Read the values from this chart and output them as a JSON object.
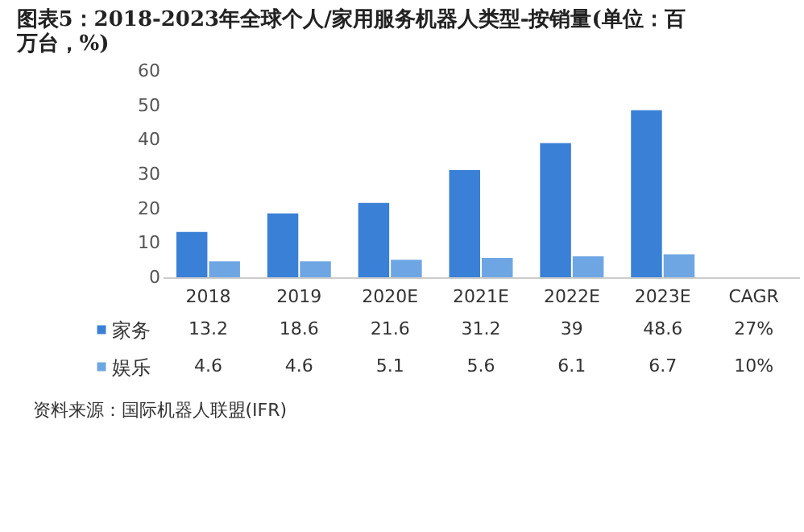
{
  "chart_data": {
    "type": "bar",
    "title": "图表5：2018-2023年全球个人/家用服务机器人类型-按销量(单位：百万台，%)",
    "categories": [
      "2018",
      "2019",
      "2020E",
      "2021E",
      "2022E",
      "2023E",
      "CAGR"
    ],
    "series": [
      {
        "name": "家务",
        "color": "#3a80d6",
        "values": [
          13.2,
          18.6,
          21.6,
          31.2,
          39,
          48.6,
          null
        ],
        "value_labels": [
          "13.2",
          "18.6",
          "21.6",
          "31.2",
          "39",
          "48.6",
          "27%"
        ]
      },
      {
        "name": "娱乐",
        "color": "#6ea6e4",
        "values": [
          4.6,
          4.6,
          5.1,
          5.6,
          6.1,
          6.7,
          null
        ],
        "value_labels": [
          "4.6",
          "4.6",
          "5.1",
          "5.6",
          "6.1",
          "6.7",
          "10%"
        ]
      }
    ],
    "legend": "bottom",
    "ylim": [
      0,
      60
    ],
    "yticks": [
      0,
      10,
      20,
      30,
      40,
      50,
      60
    ],
    "grid": false,
    "annotations": [
      "资料来源：国际机器人联盟(IFR)"
    ]
  }
}
